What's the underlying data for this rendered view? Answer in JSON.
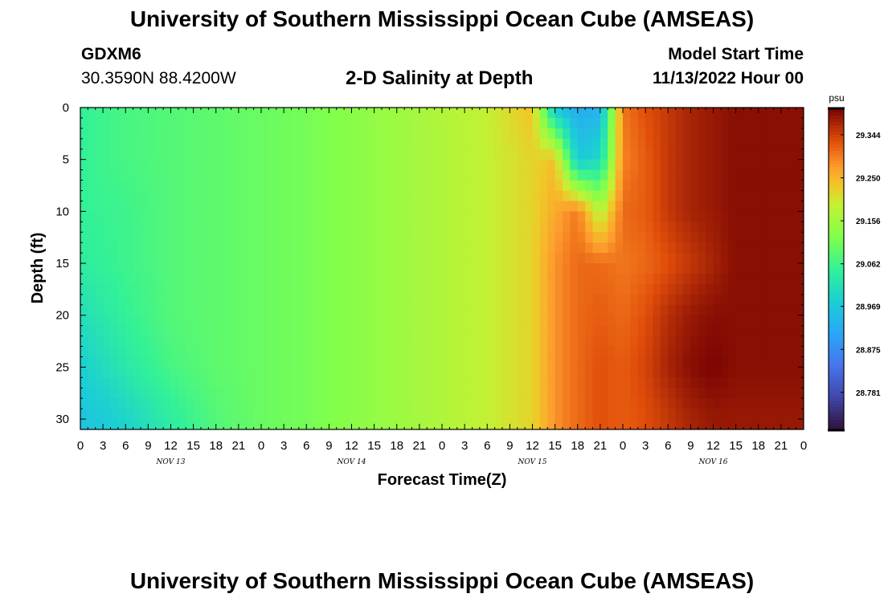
{
  "page": {
    "title": "University of Southern Mississippi Ocean Cube (AMSEAS)",
    "station_id": "GDXM6",
    "station_coords": "30.3590N  88.4200W",
    "plot_title": "2-D Salinity at Depth",
    "model_start_label": "Model Start Time",
    "model_start_value": "11/13/2022 Hour 00",
    "footer_title": "University of Southern Mississippi Ocean Cube (AMSEAS)"
  },
  "chart_data": {
    "type": "heatmap",
    "title": "2-D Salinity at Depth",
    "xlabel": "Forecast Time(Z)",
    "ylabel": "Depth (ft)",
    "x_hours_range": [
      0,
      96
    ],
    "y_range_ft": [
      0,
      31
    ],
    "y_inverted": true,
    "x_tick_labels": [
      "0",
      "3",
      "6",
      "9",
      "12",
      "15",
      "18",
      "21",
      "0",
      "3",
      "6",
      "9",
      "12",
      "15",
      "18",
      "21",
      "0",
      "3",
      "6",
      "9",
      "12",
      "15",
      "18",
      "21",
      "0",
      "3",
      "6",
      "9",
      "12",
      "15",
      "18",
      "21",
      "0"
    ],
    "day_labels": [
      {
        "label": "NOV 13",
        "hour": 12
      },
      {
        "label": "NOV 14",
        "hour": 36
      },
      {
        "label": "NOV 15",
        "hour": 60
      },
      {
        "label": "NOV 16",
        "hour": 84
      }
    ],
    "y_ticks": [
      0,
      5,
      10,
      15,
      20,
      25,
      30
    ],
    "colorbar": {
      "unit": "psu",
      "range": [
        28.7,
        29.4
      ],
      "ticks": [
        "29.344",
        "29.250",
        "29.156",
        "29.062",
        "28.969",
        "28.875",
        "28.781"
      ]
    },
    "time_hours": [
      0,
      6,
      12,
      18,
      24,
      30,
      36,
      42,
      48,
      54,
      60,
      63,
      66,
      69,
      72,
      75,
      78,
      81,
      84,
      87,
      90,
      93,
      96
    ],
    "depths_ft": [
      0,
      5,
      10,
      15,
      20,
      25,
      30
    ],
    "salinity_psu": [
      [
        29.05,
        29.07,
        29.08,
        29.09,
        29.1,
        29.11,
        29.13,
        29.15,
        29.17,
        29.19,
        29.24,
        28.96,
        28.92,
        28.93,
        29.3,
        29.33,
        29.35,
        29.37,
        29.38,
        29.39,
        29.39,
        29.39,
        29.39
      ],
      [
        29.05,
        29.07,
        29.08,
        29.09,
        29.1,
        29.11,
        29.13,
        29.15,
        29.17,
        29.19,
        29.22,
        29.24,
        28.97,
        29.0,
        29.29,
        29.32,
        29.35,
        29.37,
        29.38,
        29.39,
        29.39,
        29.39,
        29.39
      ],
      [
        29.05,
        29.06,
        29.08,
        29.09,
        29.1,
        29.11,
        29.13,
        29.15,
        29.17,
        29.19,
        29.22,
        29.26,
        29.3,
        29.17,
        29.31,
        29.32,
        29.35,
        29.37,
        29.38,
        29.39,
        29.39,
        29.39,
        29.39
      ],
      [
        29.04,
        29.06,
        29.08,
        29.09,
        29.1,
        29.11,
        29.13,
        29.15,
        29.17,
        29.19,
        29.22,
        29.28,
        29.31,
        29.31,
        29.3,
        29.31,
        29.33,
        29.35,
        29.37,
        29.39,
        29.39,
        29.39,
        29.39
      ],
      [
        29.01,
        29.05,
        29.08,
        29.09,
        29.1,
        29.11,
        29.13,
        29.15,
        29.17,
        29.19,
        29.22,
        29.28,
        29.31,
        29.32,
        29.31,
        29.33,
        29.36,
        29.38,
        29.39,
        29.39,
        29.39,
        29.39,
        29.39
      ],
      [
        28.98,
        29.03,
        29.07,
        29.09,
        29.1,
        29.11,
        29.13,
        29.15,
        29.17,
        29.19,
        29.22,
        29.28,
        29.31,
        29.33,
        29.32,
        29.34,
        29.37,
        29.39,
        29.4,
        29.39,
        29.39,
        29.39,
        29.39
      ],
      [
        28.96,
        28.99,
        29.04,
        29.08,
        29.1,
        29.11,
        29.13,
        29.15,
        29.17,
        29.19,
        29.22,
        29.28,
        29.31,
        29.33,
        29.32,
        29.33,
        29.35,
        29.37,
        29.38,
        29.38,
        29.38,
        29.38,
        29.38
      ]
    ]
  }
}
